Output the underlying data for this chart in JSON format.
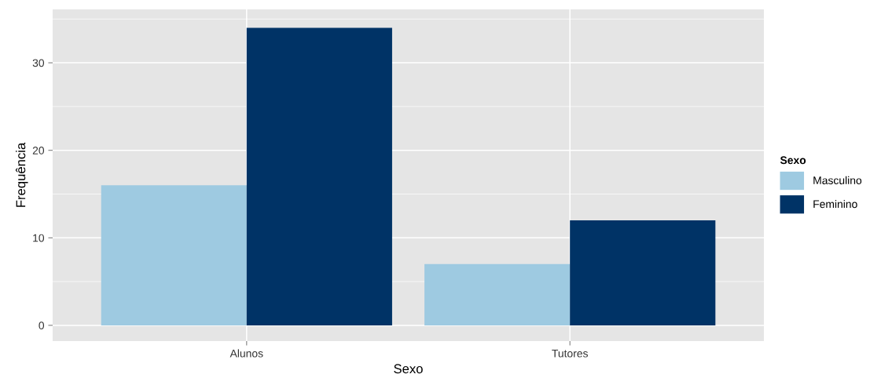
{
  "chart_data": {
    "type": "bar",
    "xlabel": "Sexo",
    "ylabel": "Frequência",
    "legend_title": "Sexo",
    "categories": [
      "Alunos",
      "Tutores"
    ],
    "series": [
      {
        "name": "Masculino",
        "color": "#9ecae1",
        "values": [
          16,
          7
        ]
      },
      {
        "name": "Feminino",
        "color": "#003366",
        "values": [
          34,
          12
        ]
      }
    ],
    "ylim": [
      -1.8,
      36.1
    ],
    "yticks": [
      0,
      10,
      20,
      30
    ],
    "grid": true,
    "legend": "right"
  }
}
